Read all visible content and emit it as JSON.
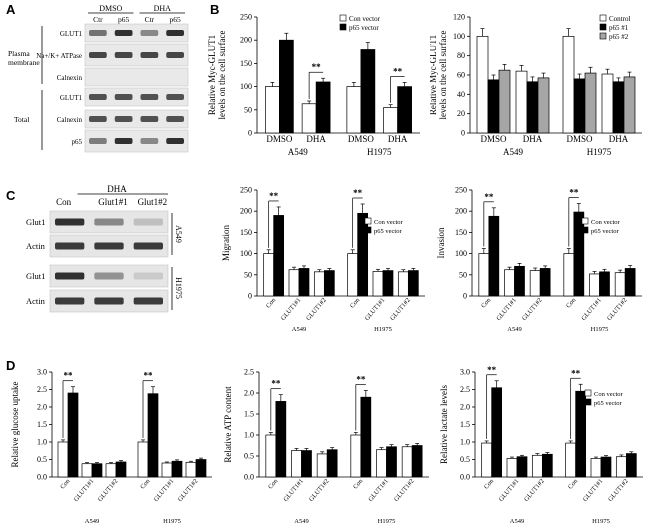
{
  "panel_labels": {
    "a": "A",
    "b": "B",
    "c": "C",
    "d": "D"
  },
  "blot_a": {
    "groups": [
      "DMSO",
      "DHA"
    ],
    "lanes": [
      "Ctr",
      "p65",
      "Ctr",
      "p65"
    ],
    "section_labels": [
      "Plasma membrane",
      "Total"
    ],
    "rows": [
      "GLUT1",
      "Na+/K+ ATPase",
      "Calnexin",
      "GLUT1",
      "Calnexin",
      "p65"
    ],
    "intensities": [
      [
        0.55,
        0.85,
        0.45,
        0.85
      ],
      [
        0.75,
        0.75,
        0.75,
        0.75
      ],
      [
        0.0,
        0.0,
        0.0,
        0.0
      ],
      [
        0.7,
        0.7,
        0.7,
        0.7
      ],
      [
        0.7,
        0.7,
        0.7,
        0.7
      ],
      [
        0.5,
        0.85,
        0.45,
        0.85
      ]
    ]
  },
  "blot_c": {
    "treatment": "DHA",
    "lanes": [
      "Con",
      "Glut1#1",
      "Glut1#2"
    ],
    "cell_lines": [
      "A549",
      "H1975"
    ],
    "rows": [
      "Glut1",
      "Actin",
      "Glut1",
      "Actin"
    ],
    "intensities": [
      [
        0.85,
        0.45,
        0.2
      ],
      [
        0.8,
        0.8,
        0.8
      ],
      [
        0.85,
        0.4,
        0.15
      ],
      [
        0.8,
        0.8,
        0.8
      ]
    ]
  },
  "colors": {
    "white_bar": "#ffffff",
    "black_bar": "#000000",
    "gray_bar": "#a6a6a6",
    "axis": "#000000"
  },
  "chart_data": [
    {
      "id": "B1",
      "type": "bar",
      "ylabel": "Relative Myc-GLUT1 levels on the cell surface",
      "ylim": [
        0,
        250
      ],
      "yticks": [
        0,
        50,
        100,
        150,
        200,
        250
      ],
      "groups": [
        {
          "label": "A549",
          "categories": [
            "DMSO",
            "DHA"
          ]
        },
        {
          "label": "H1975",
          "categories": [
            "DMSO",
            "DHA"
          ]
        }
      ],
      "series": [
        {
          "name": "Con vector",
          "color": "#ffffff",
          "values": [
            100,
            63,
            100,
            55
          ],
          "errors": [
            9,
            6,
            9,
            6
          ]
        },
        {
          "name": "p65  vector",
          "color": "#000000",
          "values": [
            200,
            110,
            180,
            100
          ],
          "errors": [
            15,
            8,
            15,
            9
          ]
        }
      ],
      "significance": [
        {
          "group": 0,
          "category": 1,
          "label": "**"
        },
        {
          "group": 1,
          "category": 1,
          "label": "**"
        }
      ],
      "legend": "top-right"
    },
    {
      "id": "B2",
      "type": "bar",
      "ylabel": "Relative Myc-GLUT1 levels on the cell surface",
      "ylim": [
        0,
        120
      ],
      "yticks": [
        0,
        20,
        40,
        60,
        80,
        100,
        120
      ],
      "groups": [
        {
          "label": "A549",
          "categories": [
            "DMSO",
            "DHA"
          ]
        },
        {
          "label": "H1975",
          "categories": [
            "DMSO",
            "DHA"
          ]
        }
      ],
      "series": [
        {
          "name": "Control",
          "color": "#ffffff",
          "values": [
            100,
            64,
            100,
            61
          ],
          "errors": [
            8,
            6,
            8,
            5
          ]
        },
        {
          "name": "p65 #1",
          "color": "#000000",
          "values": [
            55,
            53,
            56,
            53
          ],
          "errors": [
            5,
            5,
            5,
            4
          ]
        },
        {
          "name": "p65 #2",
          "color": "#a6a6a6",
          "values": [
            65,
            57,
            62,
            58
          ],
          "errors": [
            6,
            5,
            6,
            5
          ]
        }
      ],
      "legend": "top-right"
    },
    {
      "id": "C1",
      "type": "bar",
      "ylabel": "Migration",
      "ylim": [
        0,
        250
      ],
      "yticks": [
        0,
        50,
        100,
        150,
        200,
        250
      ],
      "groups": [
        {
          "label": "A549",
          "categories": [
            "Con",
            "GLUT1#1",
            "GLUT1#2"
          ]
        },
        {
          "label": "H1975",
          "categories": [
            "Con",
            "GLUT1#1",
            "GLUT1#2"
          ]
        }
      ],
      "series": [
        {
          "name": "Con vector",
          "color": "#ffffff",
          "values": [
            100,
            62,
            57,
            100,
            58,
            57
          ],
          "errors": [
            9,
            6,
            5,
            9,
            5,
            5
          ]
        },
        {
          "name": "p65  vector",
          "color": "#000000",
          "values": [
            190,
            65,
            60,
            195,
            60,
            60
          ],
          "errors": [
            20,
            6,
            5,
            22,
            5,
            5
          ]
        }
      ],
      "significance": [
        {
          "group": 0,
          "category": 0,
          "label": "**"
        },
        {
          "group": 1,
          "category": 0,
          "label": "**"
        }
      ],
      "legend": "top-right"
    },
    {
      "id": "C2",
      "type": "bar",
      "ylabel": "Invasion",
      "ylim": [
        0,
        250
      ],
      "yticks": [
        0,
        50,
        100,
        150,
        200,
        250
      ],
      "groups": [
        {
          "label": "A549",
          "categories": [
            "Con",
            "GLUT1#1",
            "GLUT1#2"
          ]
        },
        {
          "label": "H1975",
          "categories": [
            "Con",
            "GLUT1#1",
            "GLUT1#2"
          ]
        }
      ],
      "series": [
        {
          "name": "Con vector",
          "color": "#ffffff",
          "values": [
            100,
            62,
            60,
            100,
            52,
            55
          ],
          "errors": [
            12,
            6,
            6,
            12,
            6,
            6
          ]
        },
        {
          "name": "p65  vector",
          "color": "#000000",
          "values": [
            188,
            70,
            65,
            198,
            57,
            65
          ],
          "errors": [
            20,
            7,
            6,
            20,
            6,
            7
          ]
        }
      ],
      "significance": [
        {
          "group": 0,
          "category": 0,
          "label": "**"
        },
        {
          "group": 1,
          "category": 0,
          "label": "**"
        }
      ],
      "legend": "top-right"
    },
    {
      "id": "D1",
      "type": "bar",
      "ylabel": "Relative glucose uptake",
      "ylim": [
        0,
        3.0
      ],
      "yticks": [
        0.0,
        0.5,
        1.0,
        1.5,
        2.0,
        2.5,
        3.0
      ],
      "groups": [
        {
          "label": "A549",
          "categories": [
            "Con",
            "GLUT1#1",
            "GLUT1#2"
          ]
        },
        {
          "label": "H1975",
          "categories": [
            "Con",
            "GLUT1#1",
            "GLUT1#2"
          ]
        }
      ],
      "series": [
        {
          "name": "Con vector",
          "color": "#ffffff",
          "values": [
            1.0,
            0.38,
            0.38,
            1.0,
            0.4,
            0.42
          ],
          "errors": [
            0.06,
            0.03,
            0.03,
            0.06,
            0.03,
            0.03
          ]
        },
        {
          "name": "p65  vector",
          "color": "#000000",
          "values": [
            2.4,
            0.38,
            0.43,
            2.38,
            0.45,
            0.5
          ],
          "errors": [
            0.18,
            0.03,
            0.04,
            0.2,
            0.04,
            0.04
          ]
        }
      ],
      "significance": [
        {
          "group": 0,
          "category": 0,
          "label": "**"
        },
        {
          "group": 1,
          "category": 0,
          "label": "**"
        }
      ]
    },
    {
      "id": "D2",
      "type": "bar",
      "ylabel": "Relative ATP content",
      "ylim": [
        0,
        2.5
      ],
      "yticks": [
        0.0,
        0.5,
        1.0,
        1.5,
        2.0,
        2.5
      ],
      "groups": [
        {
          "label": "A549",
          "categories": [
            "Con",
            "GLUT1#1",
            "GLUT1#2"
          ]
        },
        {
          "label": "H1975",
          "categories": [
            "Con",
            "GLUT1#1",
            "GLUT1#2"
          ]
        }
      ],
      "series": [
        {
          "name": "Con vector",
          "color": "#ffffff",
          "values": [
            1.0,
            0.63,
            0.55,
            1.0,
            0.65,
            0.72
          ],
          "errors": [
            0.06,
            0.05,
            0.05,
            0.06,
            0.05,
            0.05
          ]
        },
        {
          "name": "p65  vector",
          "color": "#000000",
          "values": [
            1.8,
            0.63,
            0.65,
            1.9,
            0.72,
            0.75
          ],
          "errors": [
            0.16,
            0.05,
            0.05,
            0.16,
            0.05,
            0.05
          ]
        }
      ],
      "significance": [
        {
          "group": 0,
          "category": 0,
          "label": "**"
        },
        {
          "group": 1,
          "category": 0,
          "label": "**"
        }
      ]
    },
    {
      "id": "D3",
      "type": "bar",
      "ylabel": "Relative lactate levels",
      "ylim": [
        0,
        3.0
      ],
      "yticks": [
        0.0,
        0.5,
        1.0,
        1.5,
        2.0,
        2.5,
        3.0
      ],
      "groups": [
        {
          "label": "A549",
          "categories": [
            "Con",
            "GLUT1#1",
            "GLUT1#2"
          ]
        },
        {
          "label": "H1975",
          "categories": [
            "Con",
            "GLUT1#1",
            "GLUT1#2"
          ]
        }
      ],
      "series": [
        {
          "name": "Con vector",
          "color": "#ffffff",
          "values": [
            0.97,
            0.53,
            0.62,
            0.97,
            0.53,
            0.58
          ],
          "errors": [
            0.06,
            0.04,
            0.05,
            0.06,
            0.04,
            0.05
          ]
        },
        {
          "name": "p65  vector",
          "color": "#000000",
          "values": [
            2.55,
            0.58,
            0.65,
            2.45,
            0.57,
            0.67
          ],
          "errors": [
            0.2,
            0.04,
            0.05,
            0.2,
            0.04,
            0.05
          ]
        }
      ],
      "significance": [
        {
          "group": 0,
          "category": 0,
          "label": "**"
        },
        {
          "group": 1,
          "category": 0,
          "label": "**"
        }
      ],
      "legend": "top-right"
    }
  ]
}
